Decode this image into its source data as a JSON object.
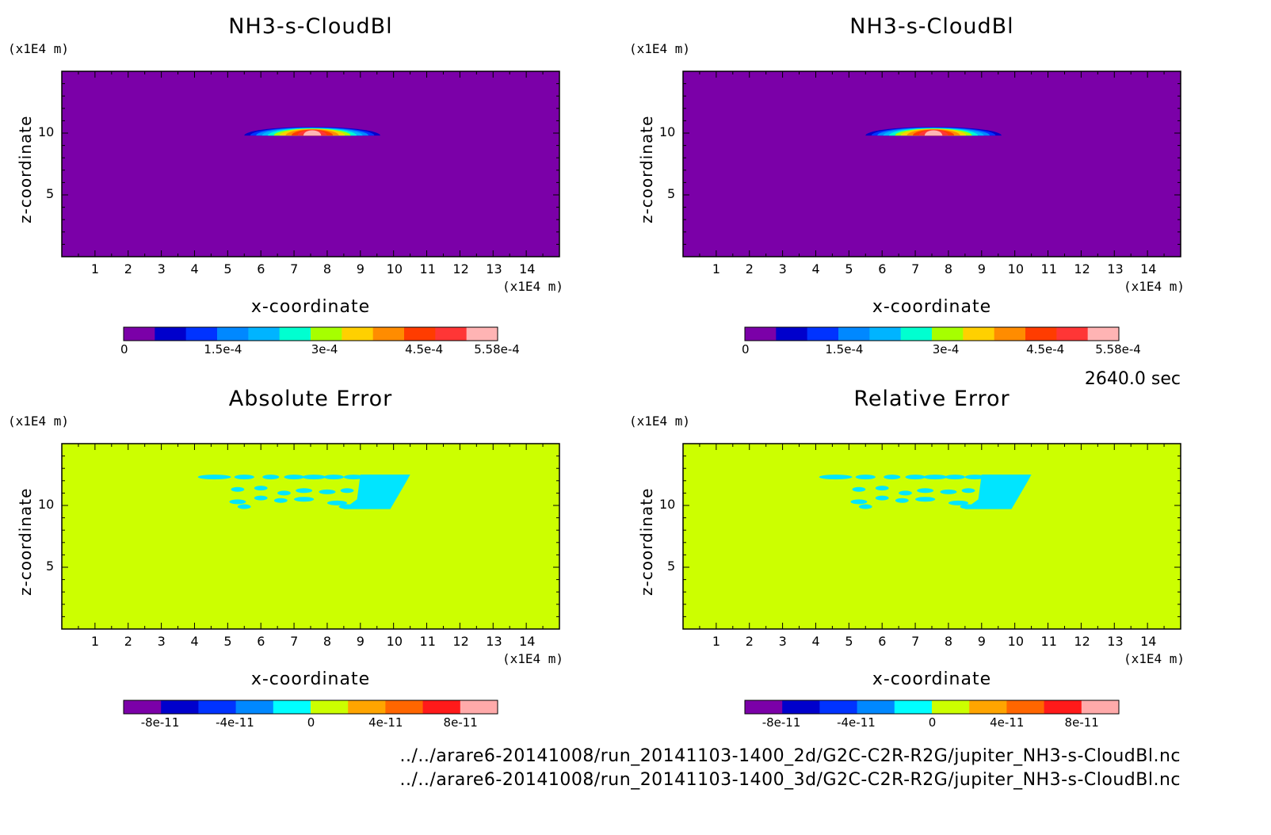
{
  "time_label": "2640.0 sec",
  "file_paths": [
    "../../arare6-20141008/run_20141103-1400_2d/G2C-C2R-R2G/jupiter_NH3-s-CloudBl.nc",
    "../../arare6-20141008/run_20141103-1400_3d/G2C-C2R-R2G/jupiter_NH3-s-CloudBl.nc"
  ],
  "colors": {
    "background_top": "#7b00a8",
    "background_bottom": "#ccff00",
    "cloud_blob": "#00e5ff"
  },
  "chart_data": [
    {
      "type": "heatmap",
      "title": "NH3-s-CloudBl",
      "xlabel": "x-coordinate",
      "ylabel": "z-coordinate",
      "x_unit": "(x1E4 m)",
      "z_unit": "(x1E4 m)",
      "x_ticks": [
        "1",
        "2",
        "3",
        "4",
        "5",
        "6",
        "7",
        "8",
        "9",
        "10",
        "11",
        "12",
        "13",
        "14"
      ],
      "z_ticks": [
        "5",
        "10"
      ],
      "xlim": [
        0,
        15
      ],
      "zlim": [
        0,
        15
      ],
      "colorbar": {
        "colors": [
          "#7b00a8",
          "#0000cc",
          "#0033ff",
          "#0088ff",
          "#00b4ff",
          "#00ffd0",
          "#a6ff00",
          "#ffd000",
          "#ff8c00",
          "#ff3c00",
          "#ff3636",
          "#ffb4b4"
        ],
        "labels": [
          "0",
          "1.5e-4",
          "3e-4",
          "4.5e-4",
          "5.58e-4"
        ],
        "range": [
          0,
          0.000558
        ]
      },
      "feature": {
        "type": "cloud_cap",
        "x_range": [
          5.5,
          9.6
        ],
        "z_range": [
          9.8,
          10.5
        ],
        "peak": 0.000558
      }
    },
    {
      "type": "heatmap",
      "title": "NH3-s-CloudBl",
      "xlabel": "x-coordinate",
      "ylabel": "z-coordinate",
      "x_unit": "(x1E4 m)",
      "z_unit": "(x1E4 m)",
      "x_ticks": [
        "1",
        "2",
        "3",
        "4",
        "5",
        "6",
        "7",
        "8",
        "9",
        "10",
        "11",
        "12",
        "13",
        "14"
      ],
      "z_ticks": [
        "5",
        "10"
      ],
      "xlim": [
        0,
        15
      ],
      "zlim": [
        0,
        15
      ],
      "colorbar": {
        "colors": [
          "#7b00a8",
          "#0000cc",
          "#0033ff",
          "#0088ff",
          "#00b4ff",
          "#00ffd0",
          "#a6ff00",
          "#ffd000",
          "#ff8c00",
          "#ff3c00",
          "#ff3636",
          "#ffb4b4"
        ],
        "labels": [
          "0",
          "1.5e-4",
          "3e-4",
          "4.5e-4",
          "5.58e-4"
        ],
        "range": [
          0,
          0.000558
        ]
      },
      "feature": {
        "type": "cloud_cap",
        "x_range": [
          5.5,
          9.6
        ],
        "z_range": [
          9.8,
          10.5
        ],
        "peak": 0.000558
      }
    },
    {
      "type": "heatmap",
      "title": "Absolute Error",
      "xlabel": "x-coordinate",
      "ylabel": "z-coordinate",
      "x_unit": "(x1E4 m)",
      "z_unit": "(x1E4 m)",
      "x_ticks": [
        "1",
        "2",
        "3",
        "4",
        "5",
        "6",
        "7",
        "8",
        "9",
        "10",
        "11",
        "12",
        "13",
        "14"
      ],
      "z_ticks": [
        "5",
        "10"
      ],
      "xlim": [
        0,
        15
      ],
      "zlim": [
        0,
        15
      ],
      "colorbar": {
        "colors": [
          "#7b00a8",
          "#0000cc",
          "#0033ff",
          "#0088ff",
          "#00ffff",
          "#ccff00",
          "#ffa500",
          "#ff6600",
          "#ff1a1a",
          "#ffaaaa"
        ],
        "labels": [
          "-8e-11",
          "-4e-11",
          "0",
          "4e-11",
          "8e-11"
        ],
        "range": [
          -1e-10,
          1e-10
        ]
      },
      "feature": {
        "type": "error_patch",
        "x_range": [
          4.5,
          10.5
        ],
        "z_range": [
          9.5,
          12.5
        ]
      }
    },
    {
      "type": "heatmap",
      "title": "Relative Error",
      "xlabel": "x-coordinate",
      "ylabel": "z-coordinate",
      "x_unit": "(x1E4 m)",
      "z_unit": "(x1E4 m)",
      "x_ticks": [
        "1",
        "2",
        "3",
        "4",
        "5",
        "6",
        "7",
        "8",
        "9",
        "10",
        "11",
        "12",
        "13",
        "14"
      ],
      "z_ticks": [
        "5",
        "10"
      ],
      "xlim": [
        0,
        15
      ],
      "zlim": [
        0,
        15
      ],
      "colorbar": {
        "colors": [
          "#7b00a8",
          "#0000cc",
          "#0033ff",
          "#0088ff",
          "#00ffff",
          "#ccff00",
          "#ffa500",
          "#ff6600",
          "#ff1a1a",
          "#ffaaaa"
        ],
        "labels": [
          "-8e-11",
          "-4e-11",
          "0",
          "4e-11",
          "8e-11"
        ],
        "range": [
          -1e-10,
          1e-10
        ]
      },
      "feature": {
        "type": "error_patch",
        "x_range": [
          4.5,
          10.5
        ],
        "z_range": [
          9.5,
          12.5
        ]
      }
    }
  ]
}
